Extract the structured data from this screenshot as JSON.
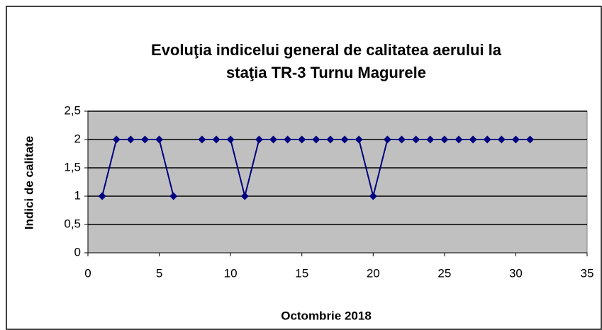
{
  "chart_data": {
    "type": "line",
    "title": [
      "Evoluţia indicelui general de calitatea aerului la",
      "staţia TR-3 Turnu Magurele"
    ],
    "x_label": "Octombrie 2018",
    "y_label": "Indici de calitate",
    "x": [
      1,
      2,
      3,
      4,
      5,
      6,
      7,
      8,
      9,
      10,
      11,
      12,
      13,
      14,
      15,
      16,
      17,
      18,
      19,
      20,
      21,
      22,
      23,
      24,
      25,
      26,
      27,
      28,
      29,
      30,
      31
    ],
    "values": [
      1,
      2,
      2,
      2,
      2,
      1,
      null,
      2,
      2,
      2,
      1,
      2,
      2,
      2,
      2,
      2,
      2,
      2,
      2,
      1,
      2,
      2,
      2,
      2,
      2,
      2,
      2,
      2,
      2,
      2,
      2
    ],
    "color": "#000080",
    "xlim": [
      0,
      35
    ],
    "xticks": [
      0,
      5,
      10,
      15,
      20,
      25,
      30,
      35
    ],
    "ylim": [
      0,
      2.5
    ],
    "yticks": [
      0,
      {
        "value": 0.5,
        "label": "0,5"
      },
      1,
      {
        "value": 1.5,
        "label": "1,5"
      },
      2,
      {
        "value": 2.5,
        "label": "2,5"
      }
    ],
    "grid": true,
    "plot_background": "#c0c0c0"
  }
}
